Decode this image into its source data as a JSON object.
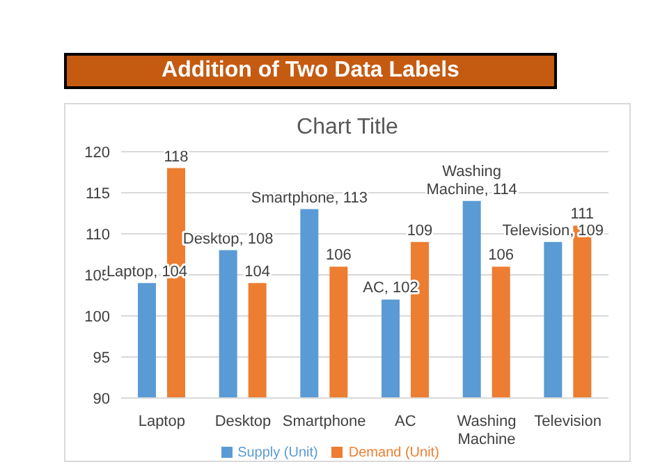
{
  "chart_data": {
    "type": "bar",
    "title": "Chart Title",
    "annotations": [
      "Addition of Two Data Labels"
    ],
    "categories": [
      "Laptop",
      "Desktop",
      "Smartphone",
      "AC",
      "Washing Machine",
      "Television"
    ],
    "series": [
      {
        "name": "Supply (Unit)",
        "color": "#5b9bd5",
        "values": [
          104,
          108,
          113,
          102,
          114,
          109
        ],
        "value_labels": [
          "Laptop, 104",
          "Desktop, 108",
          "Smartphone, 113",
          "AC, 102",
          "Washing Machine, 114",
          "Television, 109"
        ]
      },
      {
        "name": "Demand (Unit)",
        "color": "#ed7d31",
        "values": [
          118,
          104,
          106,
          109,
          106,
          111
        ],
        "value_labels": [
          "118",
          "104",
          "106",
          "109",
          "106",
          "111"
        ]
      }
    ],
    "ylim": [
      90,
      120
    ],
    "yticks": [
      90,
      95,
      100,
      105,
      110,
      115,
      120
    ],
    "grid": "y",
    "legend": "bottom"
  }
}
